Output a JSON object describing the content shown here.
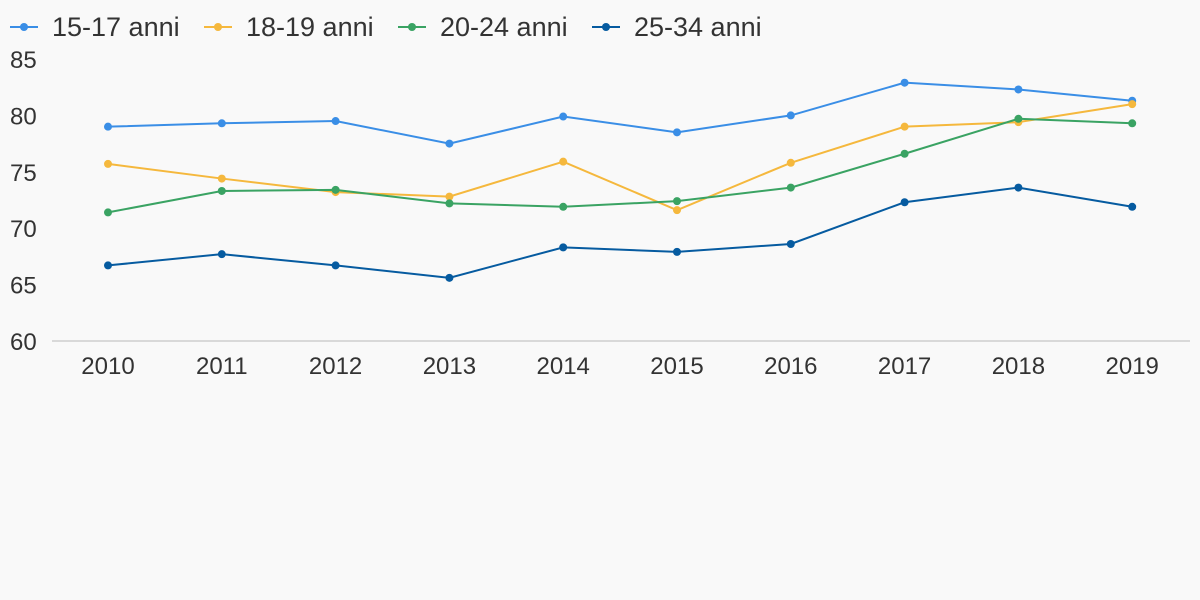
{
  "chart_data": {
    "type": "line",
    "categories": [
      "2010",
      "2011",
      "2012",
      "2013",
      "2014",
      "2015",
      "2016",
      "2017",
      "2018",
      "2019"
    ],
    "ylim": [
      60,
      85
    ],
    "yticks": [
      "60",
      "65",
      "70",
      "75",
      "80",
      "85"
    ],
    "grid": false,
    "legend": "top-left",
    "series": [
      {
        "name": "15-17 anni",
        "color": "#3a8ee6",
        "values": [
          79.0,
          79.3,
          79.5,
          77.5,
          79.9,
          78.5,
          80.0,
          82.9,
          82.3,
          81.3
        ]
      },
      {
        "name": "18-19 anni",
        "color": "#f5b83d",
        "values": [
          75.7,
          74.4,
          73.2,
          72.8,
          75.9,
          71.6,
          75.8,
          79.0,
          79.4,
          81.0
        ]
      },
      {
        "name": "20-24 anni",
        "color": "#3aa363",
        "values": [
          71.4,
          73.3,
          73.4,
          72.2,
          71.9,
          72.4,
          73.6,
          76.6,
          79.7,
          79.3
        ]
      },
      {
        "name": "25-34 anni",
        "color": "#065ba0",
        "values": [
          66.7,
          67.7,
          66.7,
          65.6,
          68.3,
          67.9,
          68.6,
          72.3,
          73.6,
          71.9
        ]
      }
    ]
  }
}
